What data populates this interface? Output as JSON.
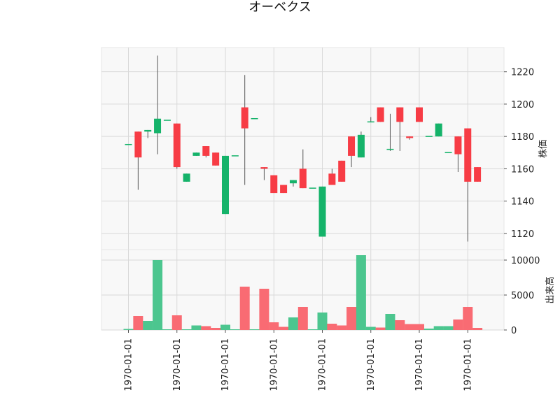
{
  "chart_data": {
    "type": "candlestick",
    "title": "オーベクス",
    "price_panel": {
      "ylabel": "株価",
      "ylim": [
        1110,
        1235
      ],
      "yticks": [
        1120,
        1140,
        1160,
        1180,
        1200,
        1220
      ]
    },
    "volume_panel": {
      "ylabel": "出来高",
      "ylim": [
        0,
        11500
      ],
      "yticks": [
        0,
        5000,
        10000
      ]
    },
    "x_tick_labels": [
      "1970-01-01",
      "1970-01-01",
      "1970-01-01",
      "1970-01-01",
      "1970-01-01",
      "1970-01-01",
      "1970-01-01",
      "1970-01-01"
    ],
    "grid": true,
    "colors": {
      "up": "#15b36a",
      "down": "#f73c45",
      "up_volume": "#4cc68f",
      "down_volume": "#f96b73",
      "wick": "#555555",
      "panel_bg": "#f8f8f8",
      "grid": "#d9d9d9"
    },
    "candles": [
      {
        "open": 1175,
        "high": 1175,
        "low": 1175,
        "close": 1175,
        "volume": 150
      },
      {
        "open": 1183,
        "high": 1183,
        "low": 1147,
        "close": 1167,
        "volume": 2000
      },
      {
        "open": 1183,
        "high": 1184,
        "low": 1179,
        "close": 1184,
        "volume": 1300
      },
      {
        "open": 1182,
        "high": 1230,
        "low": 1169,
        "close": 1191,
        "volume": 10000
      },
      {
        "open": 1190,
        "high": 1190,
        "low": 1190,
        "close": 1190,
        "volume": 100
      },
      {
        "open": 1188,
        "high": 1188,
        "low": 1160,
        "close": 1161,
        "volume": 2100
      },
      {
        "open": 1152,
        "high": 1157,
        "low": 1152,
        "close": 1157,
        "volume": 100
      },
      {
        "open": 1168,
        "high": 1170,
        "low": 1168,
        "close": 1170,
        "volume": 650
      },
      {
        "open": 1174,
        "high": 1174,
        "low": 1167,
        "close": 1168,
        "volume": 550
      },
      {
        "open": 1170,
        "high": 1170,
        "low": 1162,
        "close": 1162,
        "volume": 300
      },
      {
        "open": 1132,
        "high": 1168,
        "low": 1132,
        "close": 1168,
        "volume": 750
      },
      {
        "open": 1168,
        "high": 1168,
        "low": 1168,
        "close": 1168,
        "volume": 100
      },
      {
        "open": 1198,
        "high": 1218,
        "low": 1150,
        "close": 1185,
        "volume": 6200
      },
      {
        "open": 1191,
        "high": 1191,
        "low": 1191,
        "close": 1191,
        "volume": 100
      },
      {
        "open": 1161,
        "high": 1161,
        "low": 1153,
        "close": 1160,
        "volume": 5900
      },
      {
        "open": 1156,
        "high": 1156,
        "low": 1145,
        "close": 1145,
        "volume": 1100
      },
      {
        "open": 1150,
        "high": 1150,
        "low": 1145,
        "close": 1145,
        "volume": 450
      },
      {
        "open": 1151,
        "high": 1153,
        "low": 1149,
        "close": 1153,
        "volume": 1800
      },
      {
        "open": 1160,
        "high": 1172,
        "low": 1148,
        "close": 1148,
        "volume": 3300
      },
      {
        "open": 1148,
        "high": 1148,
        "low": 1148,
        "close": 1148,
        "volume": 100
      },
      {
        "open": 1118,
        "high": 1149,
        "low": 1118,
        "close": 1149,
        "volume": 2500
      },
      {
        "open": 1157,
        "high": 1160,
        "low": 1150,
        "close": 1150,
        "volume": 900
      },
      {
        "open": 1165,
        "high": 1165,
        "low": 1152,
        "close": 1152,
        "volume": 650
      },
      {
        "open": 1180,
        "high": 1180,
        "low": 1161,
        "close": 1168,
        "volume": 3300
      },
      {
        "open": 1167,
        "high": 1183,
        "low": 1167,
        "close": 1181,
        "volume": 10700
      },
      {
        "open": 1189,
        "high": 1192,
        "low": 1189,
        "close": 1189,
        "volume": 450
      },
      {
        "open": 1198,
        "high": 1198,
        "low": 1189,
        "close": 1189,
        "volume": 350
      },
      {
        "open": 1172,
        "high": 1194,
        "low": 1171,
        "close": 1172,
        "volume": 2300
      },
      {
        "open": 1198,
        "high": 1198,
        "low": 1171,
        "close": 1189,
        "volume": 1400
      },
      {
        "open": 1180,
        "high": 1180,
        "low": 1178,
        "close": 1179,
        "volume": 850
      },
      {
        "open": 1198,
        "high": 1198,
        "low": 1189,
        "close": 1189,
        "volume": 850
      },
      {
        "open": 1180,
        "high": 1180,
        "low": 1180,
        "close": 1180,
        "volume": 200
      },
      {
        "open": 1180,
        "high": 1188,
        "low": 1180,
        "close": 1188,
        "volume": 550
      },
      {
        "open": 1170,
        "high": 1170,
        "low": 1170,
        "close": 1170,
        "volume": 550
      },
      {
        "open": 1180,
        "high": 1180,
        "low": 1158,
        "close": 1169,
        "volume": 1500
      },
      {
        "open": 1185,
        "high": 1185,
        "low": 1115,
        "close": 1152,
        "volume": 3300
      },
      {
        "open": 1161,
        "high": 1161,
        "low": 1152,
        "close": 1152,
        "volume": 300
      }
    ]
  }
}
